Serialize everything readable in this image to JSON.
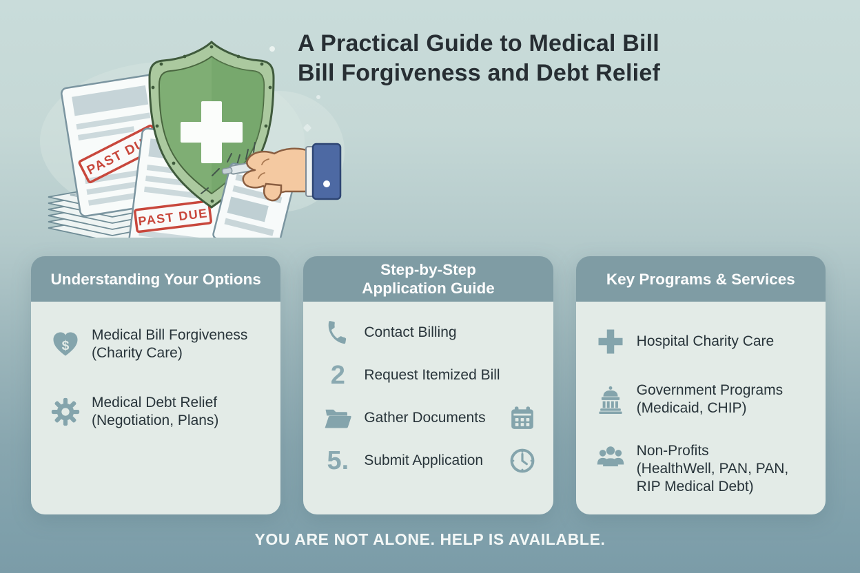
{
  "page": {
    "title_lines": [
      "A Practical Guide to Medical Bill",
      "Bill Forgiveness and Debt Relief"
    ],
    "footer_text": "YOU ARE NOT ALONE. HELP IS AVAILABLE."
  },
  "illustration": {
    "stamps": [
      "PAST DUE",
      "PAST DUE"
    ]
  },
  "colors": {
    "background_top": "#c9dcda",
    "background_bottom": "#7fa0ab",
    "header_teal": "#7f9ca4",
    "card_body": "#e3ebe7",
    "icon_slate": "#84a4ac",
    "step_number": "#8aa9b1",
    "body_text": "#28343a",
    "title_text": "#272e33",
    "footer_text": "#f4f8f7",
    "shield_green": "#7fae74",
    "stamp_red": "#c8473c",
    "cuff_blue": "#4d69a3"
  },
  "cards": [
    {
      "title_lines": [
        "Understanding Your Options"
      ],
      "items": [
        {
          "icon": "heart-dollar-icon",
          "lines": [
            "Medical Bill Forgiveness",
            "(Charity Care)"
          ]
        },
        {
          "icon": "gear-icon",
          "lines": [
            "Medical Debt Relief",
            "(Negotiation, Plans)"
          ]
        }
      ]
    },
    {
      "title_lines": [
        "Step-by-Step",
        "Application Guide"
      ],
      "items": [
        {
          "icon": "phone-icon",
          "lines": [
            "Contact Billing"
          ]
        },
        {
          "marker": "2",
          "lines": [
            "Request Itemized Bill"
          ]
        },
        {
          "icon": "folder-icon",
          "lines": [
            "Gather Documents"
          ],
          "right_icon": "calendar-icon"
        },
        {
          "marker": "5.",
          "lines": [
            "Submit Application"
          ],
          "right_icon": "clock-icon"
        }
      ]
    },
    {
      "title_lines": [
        "Key Programs & Services"
      ],
      "items": [
        {
          "icon": "plus-icon",
          "lines": [
            "Hospital Charity Care"
          ]
        },
        {
          "icon": "capitol-icon",
          "lines": [
            "Government Programs",
            "(Medicaid, CHIP)"
          ]
        },
        {
          "icon": "people-icon",
          "lines": [
            "Non-Profits",
            "(HealthWell, PAN, PAN,",
            "RIP Medical Debt)"
          ]
        }
      ]
    }
  ]
}
